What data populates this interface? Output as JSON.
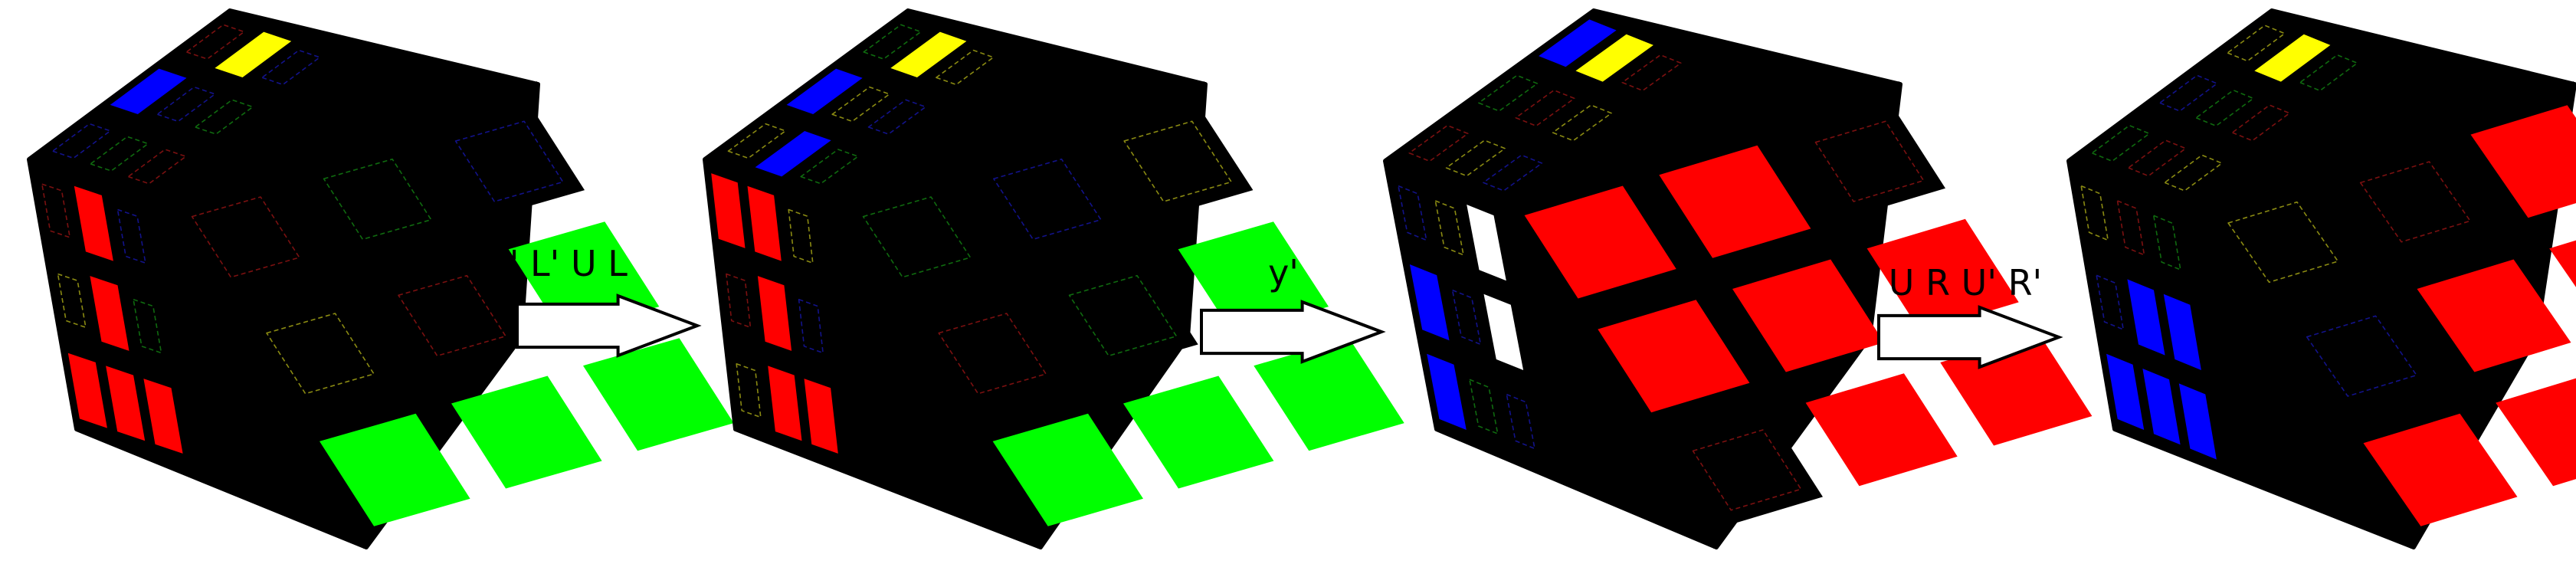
{
  "colors": {
    "R": "#ff0000",
    "G": "#00ff00",
    "B": "#0000ff",
    "Y": "#ffff00",
    "W": "#ffffff",
    "O": "#ffa500",
    "X": "#000000",
    "body": "#000000",
    "outline": "#000000",
    "arrow_fill": "#ffffff",
    "arrow_stroke": "#000000",
    "hint_red": "#7a1010",
    "hint_green": "#0f6a0f",
    "hint_blue": "#12128a",
    "hint_yellow": "#8a8a12"
  },
  "cubes": [
    {
      "id": "cube-1",
      "top": [
        [
          "X",
          "X",
          "X"
        ],
        [
          "X",
          "X",
          "Y"
        ],
        [
          "X",
          "B",
          "X"
        ]
      ],
      "left": [
        [
          "X",
          "R",
          "X"
        ],
        [
          "X",
          "R",
          "X"
        ],
        [
          "R",
          "R",
          "R"
        ]
      ],
      "right": [
        [
          "X",
          "X",
          "X"
        ],
        [
          "X",
          "X",
          "G"
        ],
        [
          "G",
          "G",
          "G"
        ]
      ]
    },
    {
      "id": "cube-2",
      "top": [
        [
          "X",
          "X",
          "X"
        ],
        [
          "B",
          "X",
          "Y"
        ],
        [
          "X",
          "B",
          "X"
        ]
      ],
      "left": [
        [
          "R",
          "R",
          "X"
        ],
        [
          "X",
          "R",
          "X"
        ],
        [
          "X",
          "R",
          "R"
        ]
      ],
      "right": [
        [
          "X",
          "X",
          "X"
        ],
        [
          "X",
          "X",
          "G"
        ],
        [
          "G",
          "G",
          "G"
        ]
      ]
    },
    {
      "id": "cube-3",
      "top": [
        [
          "X",
          "X",
          "X"
        ],
        [
          "X",
          "X",
          "Y"
        ],
        [
          "X",
          "X",
          "B"
        ]
      ],
      "left": [
        [
          "X",
          "X",
          "W"
        ],
        [
          "B",
          "X",
          "W"
        ],
        [
          "B",
          "X",
          "X"
        ]
      ],
      "right": [
        [
          "R",
          "R",
          "X"
        ],
        [
          "R",
          "R",
          "R"
        ],
        [
          "X",
          "R",
          "R"
        ]
      ]
    },
    {
      "id": "cube-4",
      "top": [
        [
          "X",
          "X",
          "X"
        ],
        [
          "X",
          "X",
          "Y"
        ],
        [
          "X",
          "X",
          "X"
        ]
      ],
      "left": [
        [
          "X",
          "X",
          "X"
        ],
        [
          "X",
          "B",
          "B"
        ],
        [
          "B",
          "B",
          "B"
        ]
      ],
      "right": [
        [
          "X",
          "X",
          "R"
        ],
        [
          "X",
          "R",
          "R"
        ],
        [
          "R",
          "R",
          "R"
        ]
      ]
    }
  ],
  "moves": [
    {
      "id": "move-1",
      "label": "U' L' U L"
    },
    {
      "id": "move-2",
      "label": "y'"
    },
    {
      "id": "move-3",
      "label": "U R U' R'"
    }
  ]
}
